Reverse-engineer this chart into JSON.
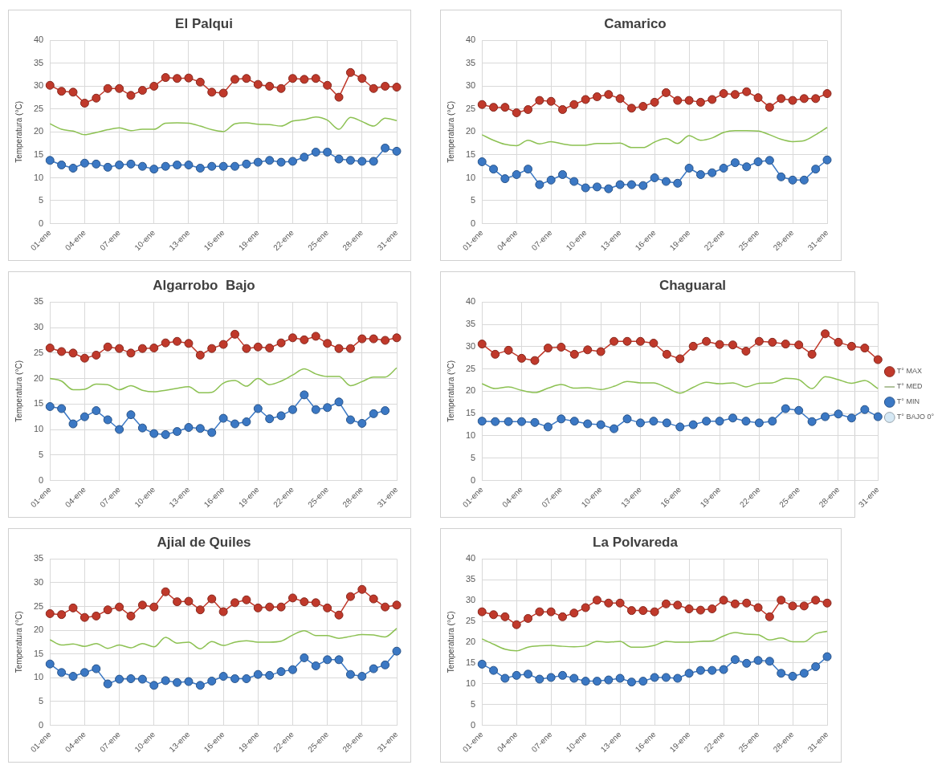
{
  "chart_data": [
    {
      "type": "line",
      "title": "El Palqui",
      "ylabel": "Temperatura (°C)",
      "categories": [
        "01-ene",
        null,
        null,
        "04-ene",
        null,
        null,
        "07-ene",
        null,
        null,
        "10-ene",
        null,
        null,
        "13-ene",
        null,
        null,
        "16-ene",
        null,
        null,
        "19-ene",
        null,
        null,
        "22-ene",
        null,
        null,
        "25-ene",
        null,
        null,
        "28-ene",
        null,
        null,
        "31-ene"
      ],
      "ylim": [
        0,
        40
      ],
      "yticks": [
        0,
        5,
        10,
        15,
        20,
        25,
        30,
        35,
        40
      ],
      "grid": true,
      "marker": "circle",
      "series": [
        {
          "color": "#c0392b",
          "values": [
            30.2,
            28.9,
            28.7,
            26.3,
            27.4,
            29.5,
            29.5,
            28,
            29.1,
            30,
            31.9,
            31.7,
            31.8,
            30.9,
            28.7,
            28.5,
            31.5,
            31.7,
            30.4,
            30,
            29.5,
            31.7,
            31.5,
            31.7,
            30.2,
            27.6,
            33,
            31.7,
            29.5,
            30,
            29.8
          ]
        },
        {
          "color": "#8cc152",
          "marker": "none",
          "values": [
            21.8,
            20.6,
            20.2,
            19.4,
            19.9,
            20.5,
            20.9,
            20.3,
            20.6,
            20.6,
            21.9,
            22,
            21.9,
            21.3,
            20.5,
            20.1,
            21.8,
            22,
            21.7,
            21.6,
            21.3,
            22.4,
            22.7,
            23.3,
            22.6,
            20.6,
            23.2,
            22.3,
            21.3,
            23,
            22.5
          ]
        },
        {
          "color": "#3b78c4",
          "values": [
            13.8,
            12.8,
            12.1,
            13.2,
            13,
            12.3,
            12.8,
            13,
            12.5,
            11.9,
            12.5,
            12.8,
            12.8,
            12.1,
            12.5,
            12.5,
            12.5,
            13,
            13.4,
            13.8,
            13.4,
            13.6,
            14.5,
            15.6,
            15.6,
            14.1,
            13.8,
            13.6,
            13.6,
            16.5,
            15.8
          ]
        }
      ]
    },
    {
      "type": "line",
      "title": "Camarico",
      "ylabel": "Temperatura (°C)",
      "categories": [
        "01-ene",
        null,
        null,
        "04-ene",
        null,
        null,
        "07-ene",
        null,
        null,
        "10-ene",
        null,
        null,
        "13-ene",
        null,
        null,
        "16-ene",
        null,
        null,
        "19-ene",
        null,
        null,
        "22-ene",
        null,
        null,
        "25-ene",
        null,
        null,
        "28-ene",
        null,
        null,
        "31-ene"
      ],
      "ylim": [
        0,
        40
      ],
      "yticks": [
        0,
        5,
        10,
        15,
        20,
        25,
        30,
        35,
        40
      ],
      "grid": true,
      "marker": "circle",
      "series": [
        {
          "color": "#c0392b",
          "values": [
            26,
            25.4,
            25.4,
            24.2,
            24.9,
            26.9,
            26.7,
            24.9,
            26,
            27.1,
            27.7,
            28.2,
            27.3,
            25.2,
            25.6,
            26.5,
            28.6,
            26.9,
            26.9,
            26.5,
            27.1,
            28.4,
            28.2,
            28.8,
            27.5,
            25.4,
            27.3,
            26.9,
            27.3,
            27.3,
            28.4
          ]
        },
        {
          "color": "#8cc152",
          "marker": "none",
          "values": [
            19.4,
            18.2,
            17.3,
            17,
            18.2,
            17.4,
            17.9,
            17.4,
            17.1,
            17.1,
            17.5,
            17.5,
            17.6,
            16.6,
            16.6,
            17.8,
            18.6,
            17.5,
            19.2,
            18.2,
            18.7,
            19.9,
            20.3,
            20.3,
            20.2,
            19.4,
            18.4,
            17.9,
            18.1,
            19.4,
            21
          ]
        },
        {
          "color": "#3b78c4",
          "values": [
            13.5,
            11.9,
            9.8,
            10.7,
            11.9,
            8.5,
            9.5,
            10.7,
            9.2,
            7.8,
            8,
            7.6,
            8.5,
            8.5,
            8.3,
            10,
            9.2,
            8.8,
            12.1,
            10.7,
            11.1,
            12.1,
            13.3,
            12.4,
            13.5,
            13.8,
            10.2,
            9.5,
            9.5,
            11.9,
            13.9
          ]
        }
      ]
    },
    {
      "type": "line",
      "title": "Algarrobo  Bajo",
      "ylabel": "Temperatura (°C)",
      "categories": [
        "01-ene",
        null,
        null,
        "04-ene",
        null,
        null,
        "07-ene",
        null,
        null,
        "10-ene",
        null,
        null,
        "13-ene",
        null,
        null,
        "16-ene",
        null,
        null,
        "19-ene",
        null,
        null,
        "22-ene",
        null,
        null,
        "25-ene",
        null,
        null,
        "28-ene",
        null,
        null,
        "31-ene"
      ],
      "ylim": [
        0,
        35
      ],
      "yticks": [
        0,
        5,
        10,
        15,
        20,
        25,
        30,
        35
      ],
      "grid": true,
      "marker": "circle",
      "series": [
        {
          "color": "#c0392b",
          "values": [
            26,
            25.3,
            25,
            24,
            24.6,
            26.2,
            25.9,
            25,
            25.9,
            26,
            27,
            27.3,
            26.9,
            24.6,
            25.9,
            26.7,
            28.7,
            25.9,
            26.2,
            26,
            27,
            28,
            27.6,
            28.3,
            26.9,
            25.9,
            25.9,
            27.8,
            27.8,
            27.5,
            28
          ]
        },
        {
          "color": "#8cc152",
          "marker": "none",
          "values": [
            20,
            19.5,
            17.8,
            17.9,
            18.9,
            18.8,
            17.8,
            18.6,
            17.7,
            17.4,
            17.7,
            18.1,
            18.4,
            17.2,
            17.3,
            19.1,
            19.6,
            18.5,
            20,
            18.8,
            19.5,
            20.7,
            21.9,
            20.9,
            20.4,
            20.4,
            18.6,
            19.4,
            20.3,
            20.3,
            22.1
          ]
        },
        {
          "color": "#3b78c4",
          "values": [
            14.5,
            14.1,
            11.1,
            12.5,
            13.7,
            11.9,
            10,
            12.9,
            10.3,
            9.2,
            9,
            9.6,
            10.4,
            10.2,
            9.4,
            12.2,
            11.1,
            11.5,
            14.1,
            12.1,
            12.7,
            13.9,
            16.8,
            13.9,
            14.3,
            15.4,
            11.9,
            11.2,
            13.1,
            13.7,
            null
          ]
        }
      ]
    },
    {
      "type": "line",
      "title": "Chaguaral",
      "ylabel": "Temperatura (°C)",
      "categories": [
        "01-ene",
        null,
        null,
        "04-ene",
        null,
        null,
        "07-ene",
        null,
        null,
        "10-ene",
        null,
        null,
        "13-ene",
        null,
        null,
        "16-ene",
        null,
        null,
        "19-ene",
        null,
        null,
        "22-ene",
        null,
        null,
        "25-ene",
        null,
        null,
        "28-ene",
        null,
        null,
        "31-ene"
      ],
      "ylim": [
        0,
        40
      ],
      "yticks": [
        0,
        5,
        10,
        15,
        20,
        25,
        30,
        35,
        40
      ],
      "grid": true,
      "marker": "circle",
      "legend": "right",
      "series": [
        {
          "name": "T° MAX",
          "color": "#c0392b",
          "values": [
            30.6,
            28.3,
            29.2,
            27.4,
            26.9,
            29.7,
            29.9,
            28.3,
            29.3,
            28.9,
            31.2,
            31.2,
            31.2,
            30.8,
            28.3,
            27.3,
            30.1,
            31.2,
            30.5,
            30.4,
            29,
            31.2,
            31,
            30.6,
            30.4,
            28.3,
            32.9,
            31,
            30.1,
            29.7,
            27.1
          ]
        },
        {
          "name": "T° MED",
          "color": "#8cc152",
          "marker": "none",
          "values": [
            21.7,
            20.6,
            21,
            20.2,
            19.7,
            20.7,
            21.5,
            20.7,
            20.8,
            20.4,
            21.1,
            22.2,
            21.9,
            21.9,
            20.8,
            19.6,
            20.9,
            22,
            21.7,
            21.9,
            21,
            21.8,
            21.9,
            22.9,
            22.6,
            20.6,
            23.3,
            22.6,
            21.8,
            22.4,
            20.6
          ]
        },
        {
          "name": "T° MIN",
          "color": "#3b78c4",
          "values": [
            13.3,
            13.2,
            13.2,
            13.2,
            13,
            12,
            13.8,
            13.3,
            12.7,
            12.5,
            11.6,
            13.8,
            12.9,
            13.3,
            12.9,
            12,
            12.5,
            13.3,
            13.3,
            14,
            13.3,
            12.9,
            13.3,
            16.1,
            15.7,
            13.2,
            14.3,
            14.9,
            14,
            15.9,
            14.3
          ]
        },
        {
          "name": "T° BAJO 0°",
          "type": "area",
          "color": "#d6e9f5",
          "values": [
            null,
            null,
            null,
            null,
            null,
            null,
            null,
            null,
            null,
            null,
            null,
            null,
            null,
            null,
            null,
            null,
            null,
            null,
            null,
            null,
            null,
            null,
            null,
            null,
            null,
            null,
            null,
            null,
            null,
            null,
            null
          ]
        }
      ]
    },
    {
      "type": "line",
      "title": "Ajial de Quiles",
      "ylabel": "Temperatura (°C)",
      "categories": [
        "01-ene",
        null,
        null,
        "04-ene",
        null,
        null,
        "07-ene",
        null,
        null,
        "10-ene",
        null,
        null,
        "13-ene",
        null,
        null,
        "16-ene",
        null,
        null,
        "19-ene",
        null,
        null,
        "22-ene",
        null,
        null,
        "25-ene",
        null,
        null,
        "28-ene",
        null,
        null,
        "31-ene"
      ],
      "ylim": [
        0,
        35
      ],
      "yticks": [
        0,
        5,
        10,
        15,
        20,
        25,
        30,
        35
      ],
      "grid": true,
      "marker": "circle",
      "series": [
        {
          "color": "#c0392b",
          "values": [
            23.5,
            23.3,
            24.7,
            22.7,
            23,
            24.3,
            24.9,
            23,
            25.3,
            24.9,
            28.1,
            26,
            26.1,
            24.3,
            26.6,
            23.9,
            25.8,
            26.4,
            24.7,
            24.9,
            24.9,
            26.8,
            26,
            25.8,
            24.7,
            23.2,
            27.1,
            28.6,
            26.6,
            24.9,
            25.3
          ]
        },
        {
          "color": "#8cc152",
          "marker": "none",
          "values": [
            18,
            16.9,
            17.1,
            16.6,
            17.2,
            16.2,
            16.9,
            16.3,
            17.2,
            16.5,
            18.5,
            17.3,
            17.5,
            16.1,
            17.6,
            16.8,
            17.5,
            17.8,
            17.5,
            17.5,
            17.7,
            19,
            19.9,
            18.9,
            18.9,
            18.3,
            18.7,
            19.1,
            19,
            18.6,
            20.4
          ]
        },
        {
          "color": "#3b78c4",
          "values": [
            12.9,
            11.1,
            10.3,
            11.1,
            11.9,
            8.7,
            9.7,
            9.8,
            9.7,
            8.4,
            9.4,
            9,
            9.2,
            8.4,
            9.3,
            10.3,
            9.8,
            9.8,
            10.7,
            10.5,
            11.3,
            11.7,
            14.2,
            12.5,
            13.8,
            13.8,
            10.7,
            10.3,
            11.9,
            12.7,
            15.6
          ]
        }
      ]
    },
    {
      "type": "line",
      "title": "La Polvareda",
      "ylabel": "Temperatura (°C)",
      "categories": [
        "01-ene",
        null,
        null,
        "04-ene",
        null,
        null,
        "07-ene",
        null,
        null,
        "10-ene",
        null,
        null,
        "13-ene",
        null,
        null,
        "16-ene",
        null,
        null,
        "19-ene",
        null,
        null,
        "22-ene",
        null,
        null,
        "25-ene",
        null,
        null,
        "28-ene",
        null,
        null,
        "31-ene"
      ],
      "ylim": [
        0,
        40
      ],
      "yticks": [
        0,
        5,
        10,
        15,
        20,
        25,
        30,
        35,
        40
      ],
      "grid": true,
      "marker": "circle",
      "series": [
        {
          "color": "#c0392b",
          "values": [
            27.3,
            26.6,
            26.1,
            24.2,
            25.7,
            27.3,
            27.3,
            26.1,
            27,
            28.3,
            30.1,
            29.4,
            29.4,
            27.6,
            27.6,
            27.3,
            29.2,
            28.9,
            28,
            27.7,
            28,
            30.1,
            29.2,
            29.4,
            28.3,
            26.1,
            30.1,
            28.7,
            28.7,
            30.1,
            29.4
          ]
        },
        {
          "color": "#8cc152",
          "marker": "none",
          "values": [
            20.8,
            19.5,
            18.3,
            17.9,
            18.8,
            19.1,
            19.2,
            19,
            18.9,
            19.1,
            20.2,
            20,
            20.2,
            18.8,
            18.8,
            19.2,
            20.2,
            20,
            20,
            20.2,
            20.3,
            21.5,
            22.3,
            21.9,
            21.8,
            20.5,
            21,
            20.1,
            20.1,
            22,
            22.6
          ]
        },
        {
          "color": "#3b78c4",
          "values": [
            14.7,
            13.2,
            11.3,
            12,
            12.3,
            11.1,
            11.5,
            12,
            11.3,
            10.6,
            10.6,
            10.9,
            11.3,
            10.4,
            10.6,
            11.5,
            11.5,
            11.3,
            12.5,
            13.2,
            13.2,
            13.4,
            15.8,
            14.9,
            15.6,
            15.4,
            12.5,
            11.8,
            12.5,
            14.1,
            16.5
          ]
        }
      ]
    }
  ]
}
